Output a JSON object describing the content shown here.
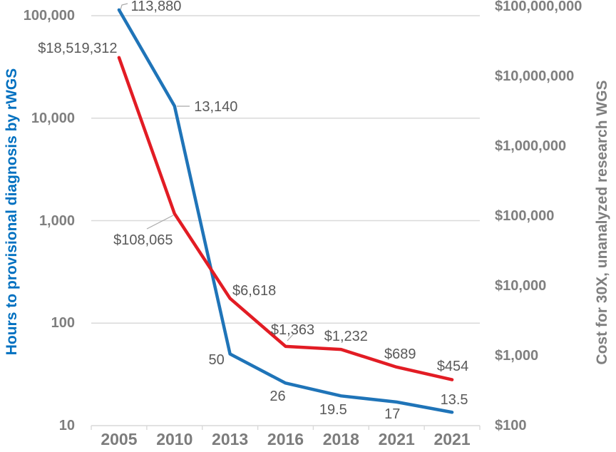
{
  "chart_data": {
    "type": "line",
    "title": "",
    "x_categories": [
      "2005",
      "2010",
      "2013",
      "2016",
      "2018",
      "2021",
      "2021"
    ],
    "series": [
      {
        "name": "Hours to provisional diagnosis by rWGS",
        "axis": "left",
        "color": "#1F74B8",
        "values": [
          113880,
          13140,
          50,
          26,
          19.5,
          17,
          13.5
        ],
        "point_labels": [
          "113,880",
          "13,140",
          "50",
          "26",
          "19.5",
          "17",
          "13.5"
        ],
        "label_offsets": [
          [
            52,
            -5
          ],
          [
            58,
            1
          ],
          [
            -19,
            8
          ],
          [
            -11,
            19
          ],
          [
            -11,
            20
          ],
          [
            -6,
            17
          ],
          [
            3,
            -17
          ]
        ]
      },
      {
        "name": "Cost for 30X, unanalyzed research WGS",
        "axis": "right",
        "color": "#E21C24",
        "values": [
          18519312,
          108065,
          6618,
          1363,
          1232,
          689,
          454
        ],
        "point_labels": [
          "$18,519,312",
          "$108,065",
          "$6,618",
          "$1,363",
          "$1,232",
          "$689",
          "$454"
        ],
        "label_offsets": [
          [
            -58,
            -13
          ],
          [
            -44,
            37
          ],
          [
            34,
            -11
          ],
          [
            10,
            -23
          ],
          [
            7,
            -18
          ],
          [
            5,
            -18
          ],
          [
            1,
            -19
          ]
        ]
      }
    ],
    "left_axis": {
      "title": "Hours to provisional diagnosis by rWGS",
      "title_color": "#0070C0",
      "scale": "log",
      "min": 10,
      "max": 100000,
      "tick_labels": [
        "100,000",
        "10,000",
        "1,000",
        "100",
        "10"
      ],
      "tick_values": [
        100000,
        10000,
        1000,
        100,
        10
      ]
    },
    "right_axis": {
      "title": "Cost for 30X, unanalyzed research WGS",
      "title_color": "#7F7F7F",
      "scale": "log",
      "min": 100,
      "max": 100000000,
      "tick_labels": [
        "$100,000,000",
        "$10,000,000",
        "$1,000,000",
        "$100,000",
        "$10,000",
        "$1,000",
        "$100"
      ],
      "tick_values": [
        100000000,
        10000000,
        1000000,
        100000,
        10000,
        1000,
        100
      ]
    },
    "grid": true,
    "gridline_values_left": [
      100000,
      10000,
      1000,
      100
    ],
    "colors": {
      "grid": "#D9D9D9",
      "axis_line": "#D9D9D9",
      "tick_text": "#7F7F7F",
      "x_tick_text": "#7C7C7C",
      "data_label": "#595959",
      "leader": "#A9A9A9",
      "background": "#FFFFFF"
    },
    "leader_lines": [
      {
        "series": "hours",
        "points": [
          [
            168,
            17
          ],
          [
            171,
            7
          ],
          [
            179,
            5
          ]
        ]
      },
      {
        "series": "hours",
        "points": [
          [
            248,
            149
          ],
          [
            266,
            149
          ]
        ]
      },
      {
        "series": "cost",
        "points": [
          [
            206,
            321
          ],
          [
            243,
            302
          ]
        ]
      },
      {
        "series": "cost",
        "points": [
          [
            403,
            478
          ],
          [
            412,
            468
          ]
        ]
      }
    ],
    "legend": "none"
  }
}
